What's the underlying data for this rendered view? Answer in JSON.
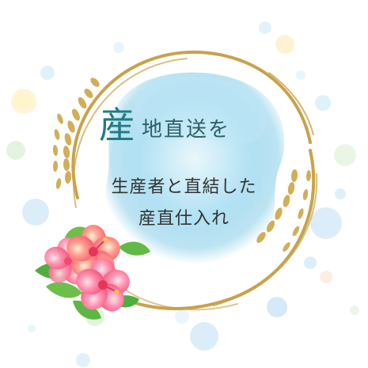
{
  "heading": {
    "first_char": "産",
    "rest": "地直送を"
  },
  "subtitle": {
    "line1": "生産者と直結した",
    "line2": "産直仕入れ"
  },
  "colors": {
    "title_teal": "#1f7c86",
    "ring_gold": "#c9a24a",
    "hibiscus_pink": "#f06a8a",
    "watercolor_blue": "#8fd0ea"
  }
}
